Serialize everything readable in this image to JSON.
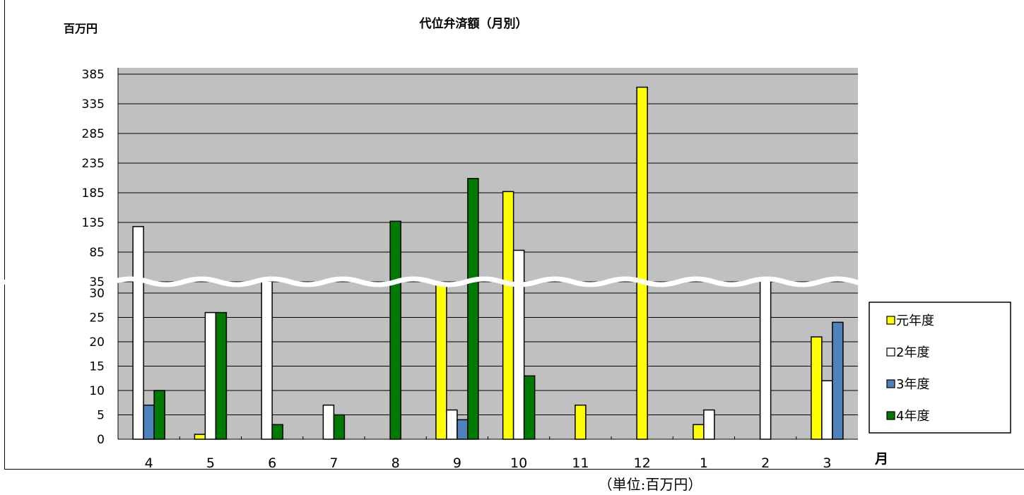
{
  "chart_data": {
    "type": "bar",
    "title": "代位弁済額（月別）",
    "ylabel": "百万円",
    "xlabel": "月",
    "note": "（単位:百万円）",
    "categories": [
      "4",
      "5",
      "6",
      "7",
      "8",
      "9",
      "10",
      "11",
      "12",
      "1",
      "2",
      "3"
    ],
    "y_ticks_lower": [
      "0",
      "5",
      "10",
      "15",
      "20",
      "25",
      "30"
    ],
    "y_ticks_upper": [
      "35",
      "85",
      "135",
      "185",
      "235",
      "285",
      "335",
      "385"
    ],
    "axis_break": true,
    "lower_ylim": [
      0,
      31
    ],
    "upper_ylim": [
      35,
      385
    ],
    "series": [
      {
        "name": "元年度",
        "color": "#ffff00",
        "values": [
          null,
          1,
          null,
          null,
          null,
          33,
          187,
          7,
          363,
          3,
          null,
          21
        ]
      },
      {
        "name": "2年度",
        "color": "#ffffff",
        "values": [
          128,
          26,
          36,
          7,
          null,
          6,
          88,
          null,
          null,
          6,
          38,
          12
        ]
      },
      {
        "name": "3年度",
        "color": "#4f81bd",
        "values": [
          7,
          null,
          null,
          null,
          null,
          4,
          null,
          null,
          null,
          null,
          null,
          24
        ]
      },
      {
        "name": "4年度",
        "color": "#007a00",
        "values": [
          10,
          26,
          3,
          5,
          137,
          209,
          13,
          null,
          null,
          null,
          null,
          null
        ]
      }
    ],
    "legend_position": "right"
  }
}
